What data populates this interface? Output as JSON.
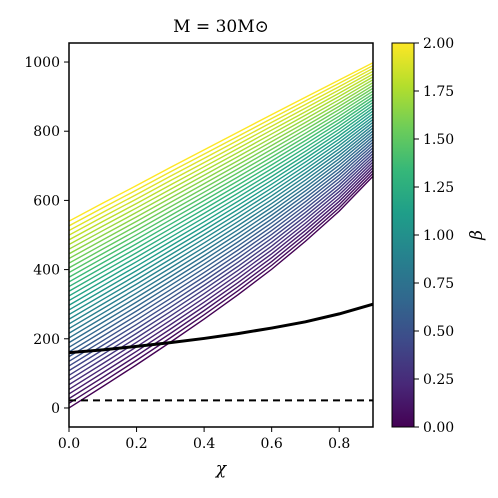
{
  "chart_data": {
    "type": "line",
    "title": "M = 30M⊙",
    "xlabel": "χ",
    "ylabel": "",
    "xlim": [
      0.0,
      0.9
    ],
    "ylim": [
      -55,
      1055
    ],
    "xticks": [
      "0.0",
      "0.2",
      "0.4",
      "0.6",
      "0.8"
    ],
    "xtick_values": [
      0.0,
      0.2,
      0.4,
      0.6,
      0.8
    ],
    "yticks": [
      "0",
      "200",
      "400",
      "600",
      "800",
      "1000"
    ],
    "ytick_values": [
      0,
      200,
      400,
      600,
      800,
      1000
    ],
    "colorbar": {
      "label": "β",
      "range": [
        0.0,
        2.0
      ],
      "colormap": "viridis",
      "ticks": [
        "0.00",
        "0.25",
        "0.50",
        "0.75",
        "1.00",
        "1.25",
        "1.50",
        "1.75",
        "2.00"
      ],
      "tick_values": [
        0.0,
        0.25,
        0.5,
        0.75,
        1.0,
        1.25,
        1.5,
        1.75,
        2.0
      ]
    },
    "family": {
      "description_values": "one curve per beta value, colored by beta",
      "beta_values": [
        0.0,
        0.05,
        0.1,
        0.15,
        0.2,
        0.25,
        0.3,
        0.35,
        0.4,
        0.45,
        0.5,
        0.55,
        0.6,
        0.65,
        0.7,
        0.75,
        0.8,
        0.85,
        0.9,
        0.95,
        1.0,
        1.05,
        1.1,
        1.15,
        1.2,
        1.25,
        1.3,
        1.35,
        1.4,
        1.45,
        1.5,
        1.55,
        1.6,
        1.65,
        1.7,
        1.75,
        1.8,
        1.85,
        1.9,
        1.95,
        2.0
      ],
      "x": [
        0.0,
        0.1,
        0.2,
        0.3,
        0.4,
        0.5,
        0.6,
        0.7,
        0.8,
        0.9
      ],
      "beta_min_values": [
        0,
        62,
        125,
        190,
        257,
        327,
        401,
        482,
        569,
        670
      ],
      "beta_max_values": [
        540,
        592,
        643,
        695,
        746,
        797,
        848,
        898,
        948,
        998
      ]
    },
    "series": [
      {
        "style": "solid-black-thick",
        "x": [
          0.0,
          0.1,
          0.2,
          0.3,
          0.4,
          0.5,
          0.6,
          0.7,
          0.8,
          0.9
        ],
        "values": [
          160,
          168,
          178,
          189,
          201,
          215,
          231,
          249,
          272,
          300
        ]
      },
      {
        "style": "dashed-black",
        "x": [
          0.0,
          0.9
        ],
        "values": [
          22,
          22
        ]
      }
    ],
    "grid": false
  }
}
